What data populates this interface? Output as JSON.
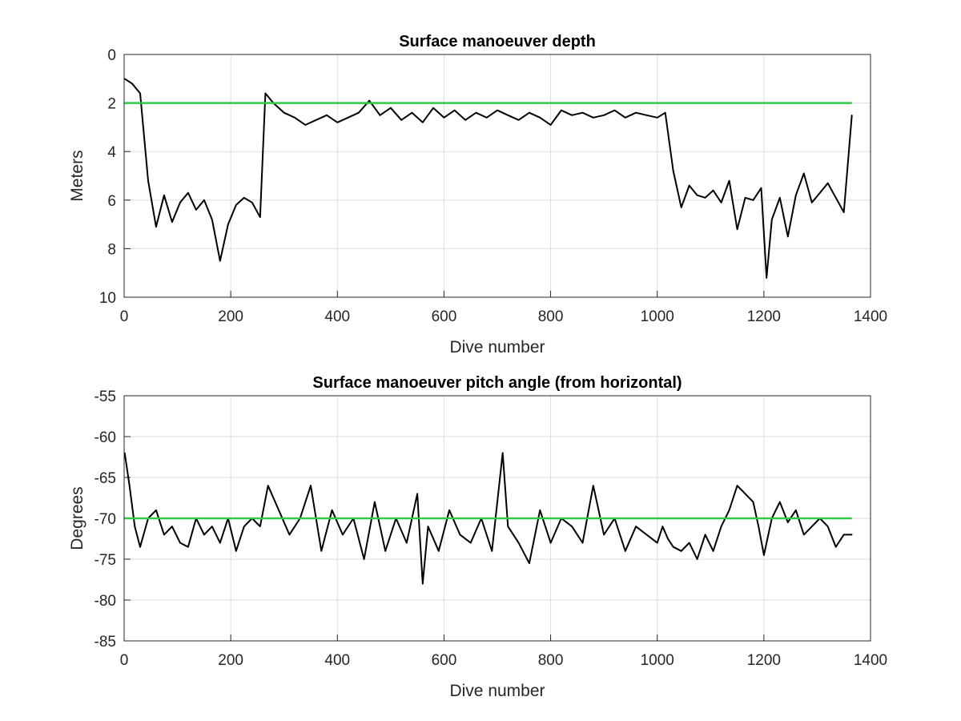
{
  "colors": {
    "data": "#000000",
    "reference": "#2ecc40",
    "grid": "#dedede",
    "axes": "#262626"
  },
  "chart_data": [
    {
      "type": "line",
      "title": "Surface manoeuver depth",
      "xlabel": "Dive number",
      "ylabel": "Meters",
      "xlim": [
        0,
        1400
      ],
      "ylim": [
        0,
        10
      ],
      "y_reversed": true,
      "grid": true,
      "xticks": [
        "0",
        "200",
        "400",
        "600",
        "800",
        "1000",
        "1200",
        "1400"
      ],
      "yticks": [
        "0",
        "2",
        "4",
        "6",
        "8",
        "10"
      ],
      "reference_line": {
        "y": 2,
        "x_range": [
          0,
          1365
        ]
      },
      "series": [
        {
          "x": [
            1,
            15,
            30,
            45,
            60,
            75,
            90,
            105,
            120,
            135,
            150,
            165,
            180,
            195,
            210,
            225,
            240,
            255,
            265,
            280,
            300,
            320,
            340,
            360,
            380,
            400,
            420,
            440,
            460,
            480,
            500,
            520,
            540,
            560,
            580,
            600,
            620,
            640,
            660,
            680,
            700,
            720,
            740,
            760,
            780,
            800,
            820,
            840,
            860,
            880,
            900,
            920,
            940,
            960,
            980,
            1000,
            1015,
            1030,
            1045,
            1060,
            1075,
            1090,
            1105,
            1120,
            1135,
            1150,
            1165,
            1180,
            1195,
            1205,
            1215,
            1230,
            1245,
            1260,
            1275,
            1290,
            1305,
            1320,
            1335,
            1350,
            1365
          ],
          "y": [
            1.0,
            1.2,
            1.6,
            5.2,
            7.1,
            5.8,
            6.9,
            6.1,
            5.7,
            6.4,
            6.0,
            6.8,
            8.5,
            7.0,
            6.2,
            5.9,
            6.1,
            6.7,
            1.6,
            2.0,
            2.4,
            2.6,
            2.9,
            2.7,
            2.5,
            2.8,
            2.6,
            2.4,
            1.9,
            2.5,
            2.2,
            2.7,
            2.4,
            2.8,
            2.2,
            2.6,
            2.3,
            2.7,
            2.4,
            2.6,
            2.3,
            2.5,
            2.7,
            2.4,
            2.6,
            2.9,
            2.3,
            2.5,
            2.4,
            2.6,
            2.5,
            2.3,
            2.6,
            2.4,
            2.5,
            2.6,
            2.4,
            4.8,
            6.3,
            5.4,
            5.8,
            5.9,
            5.6,
            6.1,
            5.2,
            7.2,
            5.9,
            6.0,
            5.5,
            9.2,
            6.8,
            5.9,
            7.5,
            5.8,
            4.9,
            6.1,
            5.7,
            5.3,
            5.9,
            6.5,
            2.5
          ]
        }
      ]
    },
    {
      "type": "line",
      "title": "Surface manoeuver pitch angle (from horizontal)",
      "xlabel": "Dive number",
      "ylabel": "Degrees",
      "xlim": [
        0,
        1400
      ],
      "ylim": [
        -85,
        -55
      ],
      "grid": true,
      "xticks": [
        "0",
        "200",
        "400",
        "600",
        "800",
        "1000",
        "1200",
        "1400"
      ],
      "yticks": [
        "-55",
        "-60",
        "-65",
        "-70",
        "-75",
        "-80",
        "-85"
      ],
      "reference_line": {
        "y": -70,
        "x_range": [
          0,
          1365
        ]
      },
      "series": [
        {
          "x": [
            1,
            10,
            20,
            30,
            45,
            60,
            75,
            90,
            105,
            120,
            135,
            150,
            165,
            180,
            195,
            210,
            225,
            240,
            255,
            270,
            290,
            310,
            330,
            350,
            370,
            390,
            410,
            430,
            450,
            470,
            490,
            510,
            530,
            550,
            560,
            570,
            590,
            610,
            630,
            650,
            670,
            690,
            710,
            720,
            740,
            760,
            780,
            800,
            820,
            840,
            860,
            880,
            900,
            920,
            940,
            960,
            980,
            1000,
            1010,
            1020,
            1030,
            1045,
            1060,
            1075,
            1090,
            1105,
            1120,
            1135,
            1150,
            1165,
            1180,
            1190,
            1200,
            1215,
            1230,
            1245,
            1260,
            1275,
            1290,
            1305,
            1320,
            1335,
            1350,
            1365
          ],
          "y": [
            -62,
            -66,
            -71,
            -73.5,
            -70,
            -69,
            -72,
            -71,
            -73,
            -73.5,
            -70,
            -72,
            -71,
            -73,
            -70,
            -74,
            -71,
            -70,
            -71,
            -66,
            -69,
            -72,
            -70,
            -66,
            -74,
            -69,
            -72,
            -70,
            -75,
            -68,
            -74,
            -70,
            -73,
            -67,
            -78,
            -71,
            -74,
            -69,
            -72,
            -73,
            -70,
            -74,
            -62,
            -71,
            -73,
            -75.5,
            -69,
            -73,
            -70,
            -71,
            -73,
            -66,
            -72,
            -70,
            -74,
            -71,
            -72,
            -73,
            -71,
            -72.5,
            -73.5,
            -74,
            -73,
            -75,
            -72,
            -74,
            -71,
            -69,
            -66,
            -67,
            -68,
            -71,
            -74.5,
            -70,
            -68,
            -70.5,
            -69,
            -72,
            -71,
            -70,
            -71,
            -73.5,
            -72,
            -72
          ]
        }
      ]
    }
  ]
}
